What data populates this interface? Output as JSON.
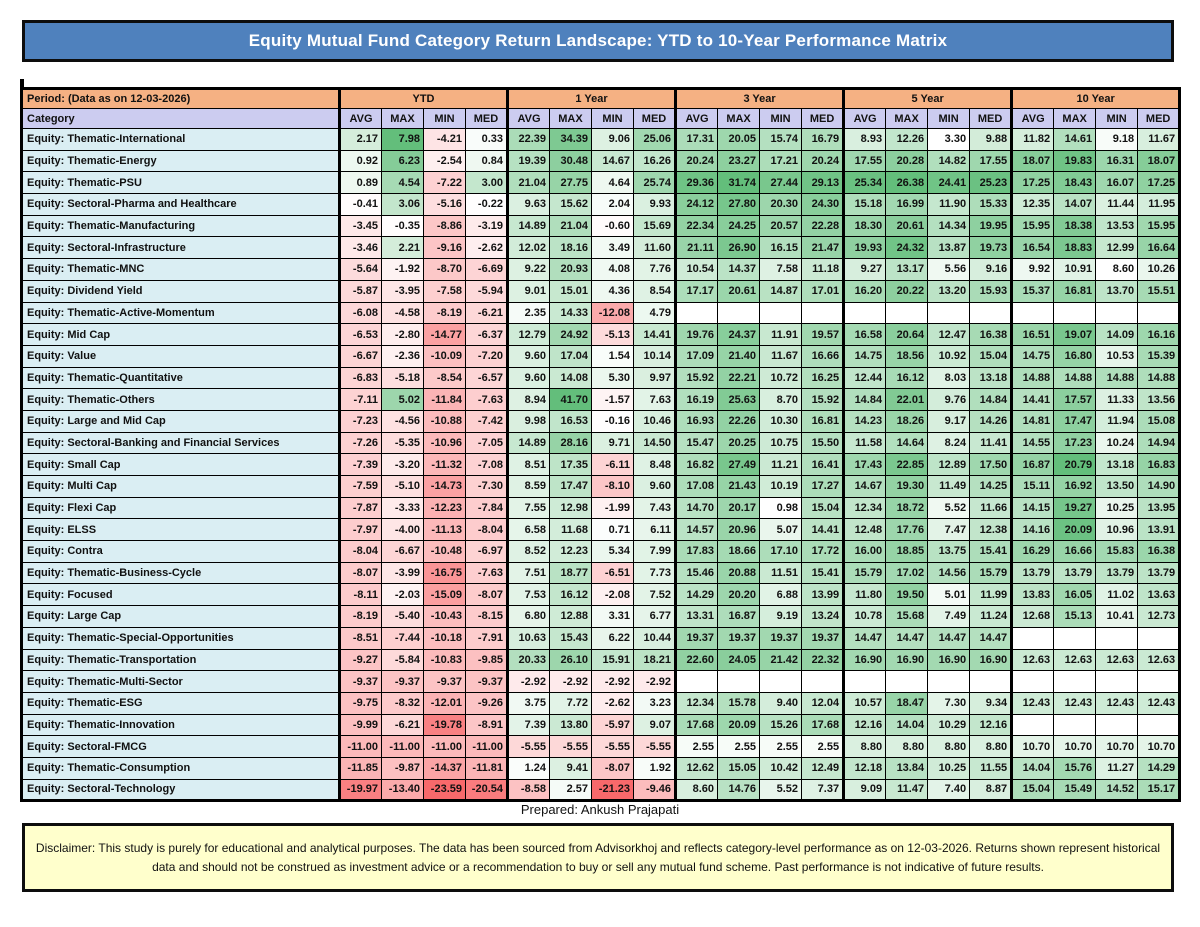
{
  "title": "Equity Mutual Fund Category Return Landscape: YTD to 10-Year Performance Matrix",
  "header": {
    "period_label": "Period: (Data as on 12-03-2026)",
    "category_label": "Category"
  },
  "footer": {
    "prepared_by": "Prepared: Ankush Prajapati",
    "disclaimer": "Disclaimer: This study is purely for educational and analytical purposes. The data has been sourced from Advisorkhoj and reflects category-level performance as on 12-03-2026. Returns shown represent historical data and should not be construed as investment advice or a recommendation to buy or sell any mutual fund scheme. Past performance is not indicative of future results."
  },
  "colors": {
    "title_bg": "#4F81BD",
    "title_text": "#FFFFFF",
    "period_header_bg": "#F5B183",
    "category_header_bg": "#CCCCF0",
    "category_column_bg": "#DAEEF3",
    "disclaimer_bg": "#FFFFCC",
    "grid": "#000000",
    "scale_green": "#63BE7B",
    "scale_red": "#F8696B",
    "scale_mid": "#FFFFFF"
  },
  "chart_data": {
    "type": "table",
    "title": "Equity Mutual Fund Category Return Landscape: YTD to 10-Year Performance Matrix",
    "period_groups": [
      "YTD",
      "1 Year",
      "3 Year",
      "5 Year",
      "10 Year"
    ],
    "stats": [
      "AVG",
      "MAX",
      "MIN",
      "MED"
    ],
    "rows": [
      {
        "category": "Equity: Thematic-International",
        "values": [
          2.17,
          7.98,
          -4.21,
          0.33,
          22.39,
          34.39,
          9.06,
          25.06,
          17.31,
          20.05,
          15.74,
          16.79,
          8.93,
          12.26,
          3.3,
          9.88,
          11.82,
          14.61,
          9.18,
          11.67
        ]
      },
      {
        "category": "Equity: Thematic-Energy",
        "values": [
          0.92,
          6.23,
          -2.54,
          0.84,
          19.39,
          30.48,
          14.67,
          16.26,
          20.24,
          23.27,
          17.21,
          20.24,
          17.55,
          20.28,
          14.82,
          17.55,
          18.07,
          19.83,
          16.31,
          18.07
        ]
      },
      {
        "category": "Equity: Thematic-PSU",
        "values": [
          0.89,
          4.54,
          -7.22,
          3.0,
          21.04,
          27.75,
          4.64,
          25.74,
          29.36,
          31.74,
          27.44,
          29.13,
          25.34,
          26.38,
          24.41,
          25.23,
          17.25,
          18.43,
          16.07,
          17.25
        ]
      },
      {
        "category": "Equity: Sectoral-Pharma and Healthcare",
        "values": [
          -0.41,
          3.06,
          -5.16,
          -0.22,
          9.63,
          15.62,
          2.04,
          9.93,
          24.12,
          27.8,
          20.3,
          24.3,
          15.18,
          16.99,
          11.9,
          15.33,
          12.35,
          14.07,
          11.44,
          11.95
        ]
      },
      {
        "category": "Equity: Thematic-Manufacturing",
        "values": [
          -3.45,
          -0.35,
          -8.86,
          -3.19,
          14.89,
          21.04,
          -0.6,
          15.69,
          22.34,
          24.25,
          20.57,
          22.28,
          18.3,
          20.61,
          14.34,
          19.95,
          15.95,
          18.38,
          13.53,
          15.95
        ]
      },
      {
        "category": "Equity: Sectoral-Infrastructure",
        "values": [
          -3.46,
          2.21,
          -9.16,
          -2.62,
          12.02,
          18.16,
          3.49,
          11.6,
          21.11,
          26.9,
          16.15,
          21.47,
          19.93,
          24.32,
          13.87,
          19.73,
          16.54,
          18.83,
          12.99,
          16.64
        ]
      },
      {
        "category": "Equity: Thematic-MNC",
        "values": [
          -5.64,
          -1.92,
          -8.7,
          -6.69,
          9.22,
          20.93,
          4.08,
          7.76,
          10.54,
          14.37,
          7.58,
          11.18,
          9.27,
          13.17,
          5.56,
          9.16,
          9.92,
          10.91,
          8.6,
          10.26
        ]
      },
      {
        "category": "Equity: Dividend Yield",
        "values": [
          -5.87,
          -3.95,
          -7.58,
          -5.94,
          9.01,
          15.01,
          4.36,
          8.54,
          17.17,
          20.61,
          14.87,
          17.01,
          16.2,
          20.22,
          13.2,
          15.93,
          15.37,
          16.81,
          13.7,
          15.51
        ]
      },
      {
        "category": "Equity: Thematic-Active-Momentum",
        "values": [
          -6.08,
          -4.58,
          -8.19,
          -6.21,
          2.35,
          14.33,
          -12.08,
          4.79,
          null,
          null,
          null,
          null,
          null,
          null,
          null,
          null,
          null,
          null,
          null,
          null
        ]
      },
      {
        "category": "Equity: Mid Cap",
        "values": [
          -6.53,
          -2.8,
          -14.77,
          -6.37,
          12.79,
          24.92,
          -5.13,
          14.41,
          19.76,
          24.37,
          11.91,
          19.57,
          16.58,
          20.64,
          12.47,
          16.38,
          16.51,
          19.07,
          14.09,
          16.16
        ]
      },
      {
        "category": "Equity: Value",
        "values": [
          -6.67,
          -2.36,
          -10.09,
          -7.2,
          9.6,
          17.04,
          1.54,
          10.14,
          17.09,
          21.4,
          11.67,
          16.66,
          14.75,
          18.56,
          10.92,
          15.04,
          14.75,
          16.8,
          10.53,
          15.39
        ]
      },
      {
        "category": "Equity: Thematic-Quantitative",
        "values": [
          -6.83,
          -5.18,
          -8.54,
          -6.57,
          9.6,
          14.08,
          5.3,
          9.97,
          15.92,
          22.21,
          10.72,
          16.25,
          12.44,
          16.12,
          8.03,
          13.18,
          14.88,
          14.88,
          14.88,
          14.88
        ]
      },
      {
        "category": "Equity: Thematic-Others",
        "values": [
          -7.11,
          5.02,
          -11.84,
          -7.63,
          8.94,
          41.7,
          -1.57,
          7.63,
          16.19,
          25.63,
          8.7,
          15.92,
          14.84,
          22.01,
          9.76,
          14.84,
          14.41,
          17.57,
          11.33,
          13.56
        ]
      },
      {
        "category": "Equity: Large and Mid Cap",
        "values": [
          -7.23,
          -4.56,
          -10.88,
          -7.42,
          9.98,
          16.53,
          -0.16,
          10.46,
          16.93,
          22.26,
          10.3,
          16.81,
          14.23,
          18.26,
          9.17,
          14.26,
          14.81,
          17.47,
          11.94,
          15.08
        ]
      },
      {
        "category": "Equity: Sectoral-Banking and Financial Services",
        "values": [
          -7.26,
          -5.35,
          -10.96,
          -7.05,
          14.89,
          28.16,
          9.71,
          14.5,
          15.47,
          20.25,
          10.75,
          15.5,
          11.58,
          14.64,
          8.24,
          11.41,
          14.55,
          17.23,
          10.24,
          14.94
        ]
      },
      {
        "category": "Equity: Small Cap",
        "values": [
          -7.39,
          -3.2,
          -11.32,
          -7.08,
          8.51,
          17.35,
          -6.11,
          8.48,
          16.82,
          27.49,
          11.21,
          16.41,
          17.43,
          22.85,
          12.89,
          17.5,
          16.87,
          20.79,
          13.18,
          16.83
        ]
      },
      {
        "category": "Equity: Multi Cap",
        "values": [
          -7.59,
          -5.1,
          -14.73,
          -7.3,
          8.59,
          17.47,
          -8.1,
          9.6,
          17.08,
          21.43,
          10.19,
          17.27,
          14.67,
          19.3,
          11.49,
          14.25,
          15.11,
          16.92,
          13.5,
          14.9
        ]
      },
      {
        "category": "Equity: Flexi Cap",
        "values": [
          -7.87,
          -3.33,
          -12.23,
          -7.84,
          7.55,
          12.98,
          -1.99,
          7.43,
          14.7,
          20.17,
          0.98,
          15.04,
          12.34,
          18.72,
          5.52,
          11.66,
          14.15,
          19.27,
          10.25,
          13.95
        ]
      },
      {
        "category": "Equity: ELSS",
        "values": [
          -7.97,
          -4.0,
          -11.13,
          -8.04,
          6.58,
          11.68,
          0.71,
          6.11,
          14.57,
          20.96,
          5.07,
          14.41,
          12.48,
          17.76,
          7.47,
          12.38,
          14.16,
          20.09,
          10.96,
          13.91
        ]
      },
      {
        "category": "Equity: Contra",
        "values": [
          -8.04,
          -6.67,
          -10.48,
          -6.97,
          8.52,
          12.23,
          5.34,
          7.99,
          17.83,
          18.66,
          17.1,
          17.72,
          16.0,
          18.85,
          13.75,
          15.41,
          16.29,
          16.66,
          15.83,
          16.38
        ]
      },
      {
        "category": "Equity: Thematic-Business-Cycle",
        "values": [
          -8.07,
          -3.99,
          -16.75,
          -7.63,
          7.51,
          18.77,
          -6.51,
          7.73,
          15.46,
          20.88,
          11.51,
          15.41,
          15.79,
          17.02,
          14.56,
          15.79,
          13.79,
          13.79,
          13.79,
          13.79
        ]
      },
      {
        "category": "Equity: Focused",
        "values": [
          -8.11,
          -2.03,
          -15.09,
          -8.07,
          7.53,
          16.12,
          -2.08,
          7.52,
          14.29,
          20.2,
          6.88,
          13.99,
          11.8,
          19.5,
          5.01,
          11.99,
          13.83,
          16.05,
          11.02,
          13.63
        ]
      },
      {
        "category": "Equity: Large Cap",
        "values": [
          -8.19,
          -5.4,
          -10.43,
          -8.15,
          6.8,
          12.88,
          3.31,
          6.77,
          13.31,
          16.87,
          9.19,
          13.24,
          10.78,
          15.68,
          7.49,
          11.24,
          12.68,
          15.13,
          10.41,
          12.73
        ]
      },
      {
        "category": "Equity: Thematic-Special-Opportunities",
        "values": [
          -8.51,
          -7.44,
          -10.18,
          -7.91,
          10.63,
          15.43,
          6.22,
          10.44,
          19.37,
          19.37,
          19.37,
          19.37,
          14.47,
          14.47,
          14.47,
          14.47,
          null,
          null,
          null,
          null
        ]
      },
      {
        "category": "Equity: Thematic-Transportation",
        "values": [
          -9.27,
          -5.84,
          -10.83,
          -9.85,
          20.33,
          26.1,
          15.91,
          18.21,
          22.6,
          24.05,
          21.42,
          22.32,
          16.9,
          16.9,
          16.9,
          16.9,
          12.63,
          12.63,
          12.63,
          12.63
        ]
      },
      {
        "category": "Equity: Thematic-Multi-Sector",
        "values": [
          -9.37,
          -9.37,
          -9.37,
          -9.37,
          -2.92,
          -2.92,
          -2.92,
          -2.92,
          null,
          null,
          null,
          null,
          null,
          null,
          null,
          null,
          null,
          null,
          null,
          null
        ]
      },
      {
        "category": "Equity: Thematic-ESG",
        "values": [
          -9.75,
          -8.32,
          -12.01,
          -9.26,
          3.75,
          7.72,
          -2.62,
          3.23,
          12.34,
          15.78,
          9.4,
          12.04,
          10.57,
          18.47,
          7.3,
          9.34,
          12.43,
          12.43,
          12.43,
          12.43
        ]
      },
      {
        "category": "Equity: Thematic-Innovation",
        "values": [
          -9.99,
          -6.21,
          -19.78,
          -8.91,
          7.39,
          13.8,
          -5.97,
          9.07,
          17.68,
          20.09,
          15.26,
          17.68,
          12.16,
          14.04,
          10.29,
          12.16,
          null,
          null,
          null,
          null
        ]
      },
      {
        "category": "Equity: Sectoral-FMCG",
        "values": [
          -11.0,
          -11.0,
          -11.0,
          -11.0,
          -5.55,
          -5.55,
          -5.55,
          -5.55,
          2.55,
          2.55,
          2.55,
          2.55,
          8.8,
          8.8,
          8.8,
          8.8,
          10.7,
          10.7,
          10.7,
          10.7
        ]
      },
      {
        "category": "Equity: Thematic-Consumption",
        "values": [
          -11.85,
          -9.87,
          -14.37,
          -11.81,
          1.24,
          9.41,
          -8.07,
          1.92,
          12.62,
          15.05,
          10.42,
          12.49,
          12.18,
          13.84,
          10.25,
          11.55,
          14.04,
          15.76,
          11.27,
          14.29
        ]
      },
      {
        "category": "Equity: Sectoral-Technology",
        "values": [
          -19.97,
          -13.4,
          -23.59,
          -20.54,
          -8.58,
          2.57,
          -21.23,
          -9.46,
          8.6,
          14.76,
          5.52,
          7.37,
          9.09,
          11.47,
          7.4,
          8.87,
          15.04,
          15.49,
          14.52,
          15.17
        ]
      }
    ]
  }
}
